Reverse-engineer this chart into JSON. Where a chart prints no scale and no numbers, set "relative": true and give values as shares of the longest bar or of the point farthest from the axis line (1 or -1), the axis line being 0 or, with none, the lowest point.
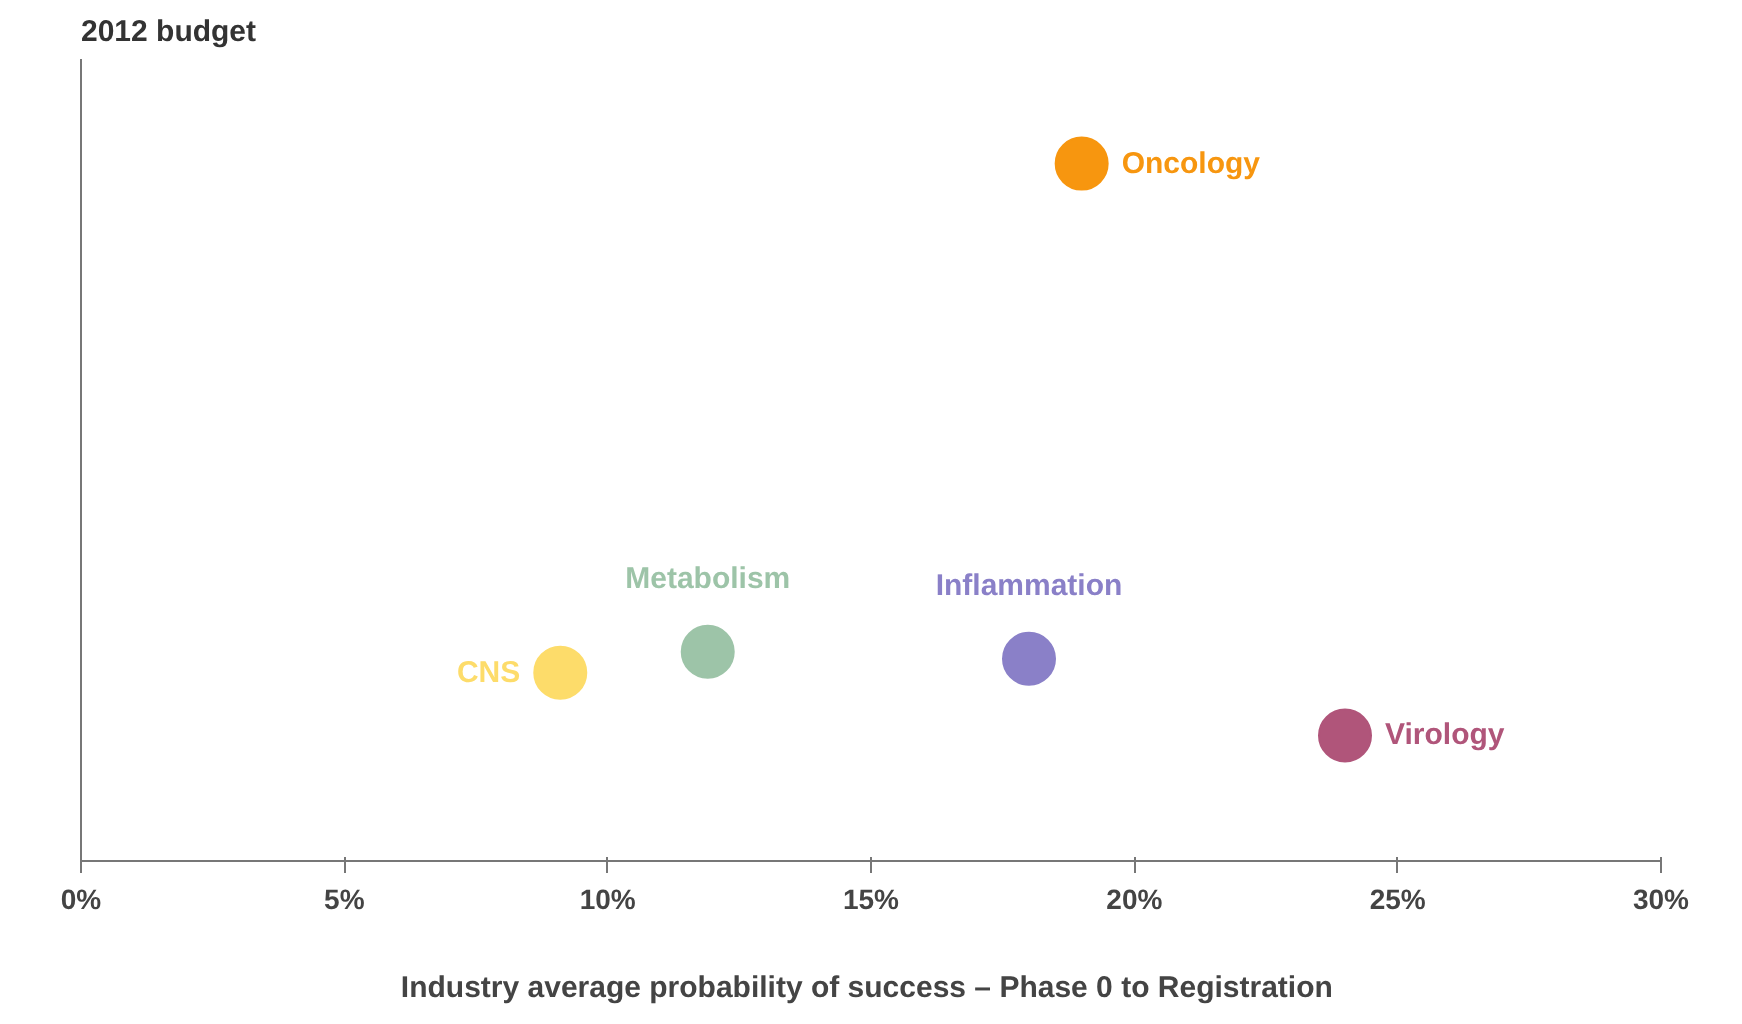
{
  "chart_data": {
    "type": "scatter",
    "ylabel": "2012 budget",
    "xlabel": "Industry average probability of success  – Phase 0 to Registration",
    "relative": true,
    "marker": "circle",
    "grid": false,
    "xlim": [
      0,
      30
    ],
    "xticks": [
      {
        "value": 0,
        "label": "0%"
      },
      {
        "value": 5,
        "label": "5%"
      },
      {
        "value": 10,
        "label": "10%"
      },
      {
        "value": 15,
        "label": "15%"
      },
      {
        "value": 20,
        "label": "20%"
      },
      {
        "value": 25,
        "label": "25%"
      },
      {
        "value": 30,
        "label": "30%"
      }
    ],
    "x": [
      19.0,
      9.1,
      11.9,
      18.0,
      24.0
    ],
    "values": [
      1,
      0.27,
      0.3,
      0.29,
      0.18
    ],
    "colors": [
      "#f7960f",
      "#fddc6a",
      "#9dc4a8",
      "#8a80c8",
      "#b0557a"
    ],
    "annotations": [
      {
        "text": "Oncology",
        "x": 19.0,
        "y": 1
      },
      {
        "text": "CNS",
        "x": 9.1,
        "y": 0.27
      },
      {
        "text": "Metabolism",
        "x": 11.9,
        "y": 0.3
      },
      {
        "text": "Inflammation",
        "x": 18.0,
        "y": 0.29
      },
      {
        "text": "Virology",
        "x": 24.0,
        "y": 0.18
      }
    ]
  }
}
